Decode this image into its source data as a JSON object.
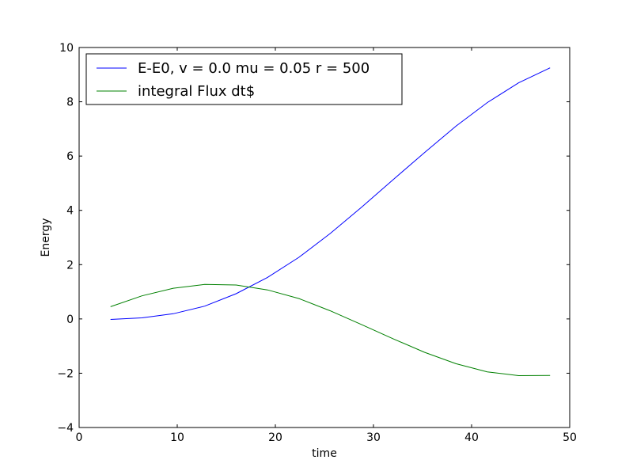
{
  "chart_data": {
    "type": "line",
    "title": "",
    "xlabel": "time",
    "ylabel": "Energy",
    "xlim": [
      0,
      50
    ],
    "ylim": [
      -4,
      10
    ],
    "xticks": [
      0,
      10,
      20,
      30,
      40,
      50
    ],
    "yticks": [
      -4,
      -2,
      0,
      2,
      4,
      6,
      8,
      10
    ],
    "xtick_labels": [
      "0",
      "10",
      "20",
      "30",
      "40",
      "50"
    ],
    "ytick_labels": [
      "−4",
      "−2",
      "0",
      "2",
      "4",
      "6",
      "8",
      "10"
    ],
    "grid": false,
    "legend_position": "upper-left",
    "series": [
      {
        "name": "E-E0, v = 0.0 mu = 0.05 r = 500",
        "color": "#0000ff",
        "x": [
          3.2,
          6.4,
          9.6,
          12.8,
          16.0,
          19.2,
          22.4,
          25.6,
          28.8,
          32.0,
          35.2,
          38.4,
          41.6,
          44.8,
          48.0
        ],
        "y": [
          -0.02,
          0.04,
          0.19,
          0.47,
          0.93,
          1.53,
          2.27,
          3.15,
          4.12,
          5.13,
          6.13,
          7.1,
          7.97,
          8.7,
          9.25
        ]
      },
      {
        "name": "integral Flux dt$",
        "color": "#008000",
        "x": [
          3.2,
          6.4,
          9.6,
          12.8,
          16.0,
          19.2,
          22.4,
          25.6,
          28.8,
          32.0,
          35.2,
          38.4,
          41.6,
          44.8,
          48.0
        ],
        "y": [
          0.45,
          0.85,
          1.13,
          1.27,
          1.25,
          1.07,
          0.75,
          0.3,
          -0.21,
          -0.73,
          -1.23,
          -1.65,
          -1.95,
          -2.09,
          -2.08
        ]
      }
    ]
  }
}
